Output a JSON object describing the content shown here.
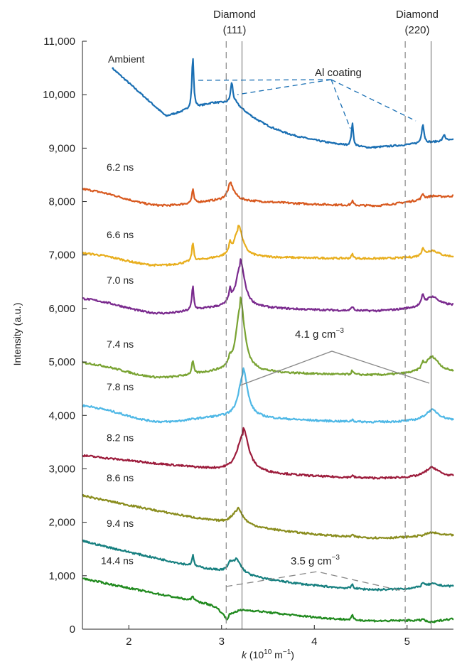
{
  "chart_data": {
    "type": "line",
    "xlabel_italic": "k",
    "xlabel_rest": " (10",
    "xlabel_exp": "10",
    "xlabel_unit": " m",
    "xlabel_unit_exp": "−1",
    "xlabel_close": ")",
    "ylabel": "Intensity (a.u.)",
    "xlim": [
      1.5,
      5.5
    ],
    "ylim": [
      0,
      11000
    ],
    "x_ticks": [
      2,
      3,
      4,
      5
    ],
    "x_tick_labels": [
      "2",
      "3",
      "4",
      "5"
    ],
    "y_ticks": [
      0,
      1000,
      2000,
      3000,
      4000,
      5000,
      6000,
      7000,
      8000,
      9000,
      10000,
      11000
    ],
    "y_tick_labels": [
      "0",
      "1,000",
      "2,000",
      "3,000",
      "4,000",
      "5,000",
      "6,000",
      "7,000",
      "8,000",
      "9,000",
      "10,000",
      "11,000"
    ],
    "grid": false,
    "legend": "inline labels",
    "diamond_111": {
      "line1": "Diamond",
      "line2": "(111)",
      "dashed_x": 3.05,
      "solid_x": 3.22
    },
    "diamond_220": {
      "line1": "Diamond",
      "line2": "(220)",
      "dashed_x": 4.98,
      "solid_x": 5.26
    },
    "al_coating_label": "Al coating",
    "density_high": {
      "value": "4.1 g cm",
      "exp": "−3"
    },
    "density_low": {
      "value": "3.5 g cm",
      "exp": "−3"
    },
    "series": [
      {
        "name": "Ambient",
        "color": "#1a6fb3",
        "type": "ambient",
        "start_x": 1.82,
        "start_y": 10500
      },
      {
        "name": "6.2 ns",
        "color": "#d8591f",
        "base": 8250,
        "peak111": 8500,
        "pos111": 3.1,
        "al": 250,
        "mid": 7920,
        "end": 8100
      },
      {
        "name": "6.6 ns",
        "color": "#e8ae1d",
        "base": 7050,
        "peak111": 7650,
        "pos111": 3.18,
        "al": 350,
        "mid": 6930,
        "end": 6960
      },
      {
        "name": "7.0 ns",
        "color": "#7a2a8e",
        "base": 6200,
        "peak111": 7100,
        "pos111": 3.2,
        "al": 450,
        "mid": 5950,
        "end": 6050
      },
      {
        "name": "7.4 ns",
        "color": "#79a332",
        "base": 5000,
        "peak111": 6400,
        "pos111": 3.2,
        "al": 250,
        "mid": 4750,
        "end": 4800
      },
      {
        "name": "7.8 ns",
        "color": "#4fb8e6",
        "base": 4200,
        "peak111": 5150,
        "pos111": 3.23,
        "al": 0,
        "mid": 3870,
        "end": 3900
      },
      {
        "name": "8.2 ns",
        "color": "#9c1b3b",
        "base": 3250,
        "peak111": 4080,
        "pos111": 3.23,
        "al": 0,
        "mid": 2820,
        "end": 2850
      },
      {
        "name": "8.6 ns",
        "color": "#8a8d1e",
        "base": 2500,
        "peak111": 2820,
        "pos111": 3.17,
        "al": 0,
        "mid": 1700,
        "end": 1750
      },
      {
        "name": "9.4 ns",
        "color": "#178080",
        "base": 1650,
        "peak111": 1950,
        "pos111": 3.15,
        "al": 200,
        "mid": 730,
        "end": 800
      },
      {
        "name": "14.4 ns",
        "color": "#208a1e",
        "base": 950,
        "peak111": 700,
        "pos111": 3.05,
        "al": 100,
        "mid": 150,
        "end": 200
      }
    ]
  }
}
